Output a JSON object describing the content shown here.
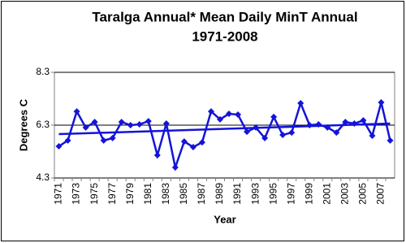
{
  "chart_data": {
    "type": "line",
    "title": [
      "Taralga Annual* Mean Daily MinT Annual",
      "1971-2008"
    ],
    "x_label": "Year",
    "y_label": "Degrees C",
    "categories": [
      "1971",
      null,
      "1973",
      null,
      "1975",
      null,
      "1977",
      null,
      "1979",
      null,
      "1981",
      null,
      "1983",
      null,
      "1985",
      null,
      "1987",
      null,
      "1989",
      null,
      "1991",
      null,
      "1993",
      null,
      "1995",
      null,
      "1997",
      null,
      "1999",
      null,
      "2001",
      null,
      "2003",
      null,
      "2005",
      null,
      "2007",
      null
    ],
    "series": [
      {
        "color": "#1414d8",
        "values": [
          5.5,
          5.72,
          6.82,
          6.21,
          6.42,
          5.72,
          5.81,
          6.42,
          6.3,
          6.33,
          6.45,
          5.16,
          6.36,
          4.7,
          5.68,
          5.47,
          5.65,
          6.82,
          6.52,
          6.73,
          6.7,
          6.05,
          6.21,
          5.81,
          6.61,
          5.93,
          6.02,
          7.13,
          6.3,
          6.33,
          6.21,
          6.02,
          6.42,
          6.36,
          6.48,
          5.9,
          7.16,
          5.72
        ]
      }
    ],
    "trendline": {
      "color": "#1414d8",
      "values": [
        5.96,
        6.36
      ]
    },
    "ylim": [
      4.3,
      8.3
    ],
    "yticks": [
      4.3,
      6.3,
      8.3
    ],
    "grid": true
  }
}
